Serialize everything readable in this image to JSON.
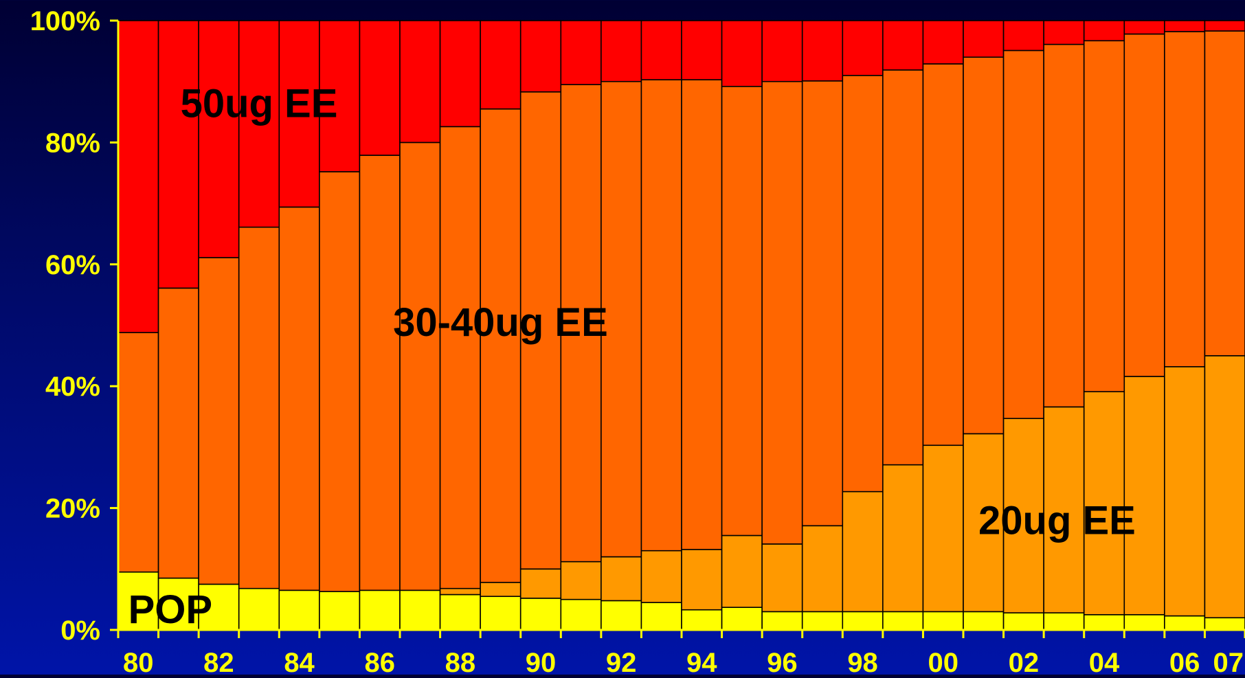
{
  "chart_data": {
    "type": "bar",
    "stacked": true,
    "percent_stacked": true,
    "title": "",
    "xlabel": "",
    "ylabel": "",
    "ylim": [
      0,
      100
    ],
    "grid": false,
    "legend": "none",
    "categories": [
      "80",
      "81",
      "82",
      "83",
      "84",
      "85",
      "86",
      "87",
      "88",
      "89",
      "90",
      "91",
      "92",
      "93",
      "94",
      "95",
      "96",
      "97",
      "98",
      "99",
      "00",
      "01",
      "02",
      "03",
      "04",
      "05",
      "06",
      "07"
    ],
    "x_tick_labels": [
      "80",
      "82",
      "84",
      "86",
      "88",
      "90",
      "92",
      "94",
      "96",
      "98",
      "00",
      "02",
      "04",
      "06",
      "07"
    ],
    "y_tick_labels": [
      "0%",
      "20%",
      "40%",
      "60%",
      "80%",
      "100%"
    ],
    "y_ticks": [
      0,
      20,
      40,
      60,
      80,
      100
    ],
    "series": [
      {
        "name": "POP",
        "color": "#ffff00",
        "values": [
          9.5,
          8.5,
          7.5,
          6.8,
          6.5,
          6.3,
          6.5,
          6.5,
          5.8,
          5.5,
          5.2,
          5.0,
          4.8,
          4.5,
          3.3,
          3.7,
          3.0,
          3.0,
          3.0,
          3.0,
          3.0,
          3.0,
          2.8,
          2.8,
          2.5,
          2.5,
          2.3,
          2.0
        ]
      },
      {
        "name": "20ug EE",
        "color": "#ff9900",
        "values": [
          0,
          0,
          0,
          0,
          0,
          0,
          0,
          0,
          1.0,
          2.3,
          4.8,
          6.2,
          7.2,
          8.5,
          9.9,
          11.8,
          11.1,
          14.1,
          19.7,
          24.1,
          27.3,
          29.2,
          31.9,
          33.8,
          36.6,
          39.1,
          40.9,
          43.0
        ]
      },
      {
        "name": "30-40ug EE",
        "color": "#ff6600",
        "values": [
          39.3,
          47.6,
          53.6,
          59.3,
          62.9,
          68.9,
          71.4,
          73.5,
          75.8,
          77.7,
          78.3,
          78.3,
          78.0,
          77.3,
          77.1,
          73.7,
          75.9,
          73.0,
          68.3,
          64.8,
          62.6,
          61.8,
          60.4,
          59.5,
          57.6,
          56.2,
          55.0,
          53.3
        ]
      },
      {
        "name": "50ug EE",
        "color": "#ff0000",
        "values": [
          51.2,
          43.9,
          38.9,
          33.9,
          30.6,
          24.8,
          22.1,
          20.0,
          17.4,
          14.5,
          11.7,
          10.5,
          10.0,
          9.7,
          9.7,
          10.8,
          10.0,
          9.9,
          9.0,
          8.1,
          7.1,
          6.0,
          4.9,
          3.9,
          3.3,
          2.2,
          1.8,
          1.7
        ]
      }
    ],
    "annotations": [
      {
        "text": "50ug EE",
        "series": "50ug EE"
      },
      {
        "text": "30-40ug EE",
        "series": "30-40ug EE"
      },
      {
        "text": "20ug EE",
        "series": "20ug EE"
      },
      {
        "text": "POP",
        "series": "POP"
      }
    ]
  }
}
